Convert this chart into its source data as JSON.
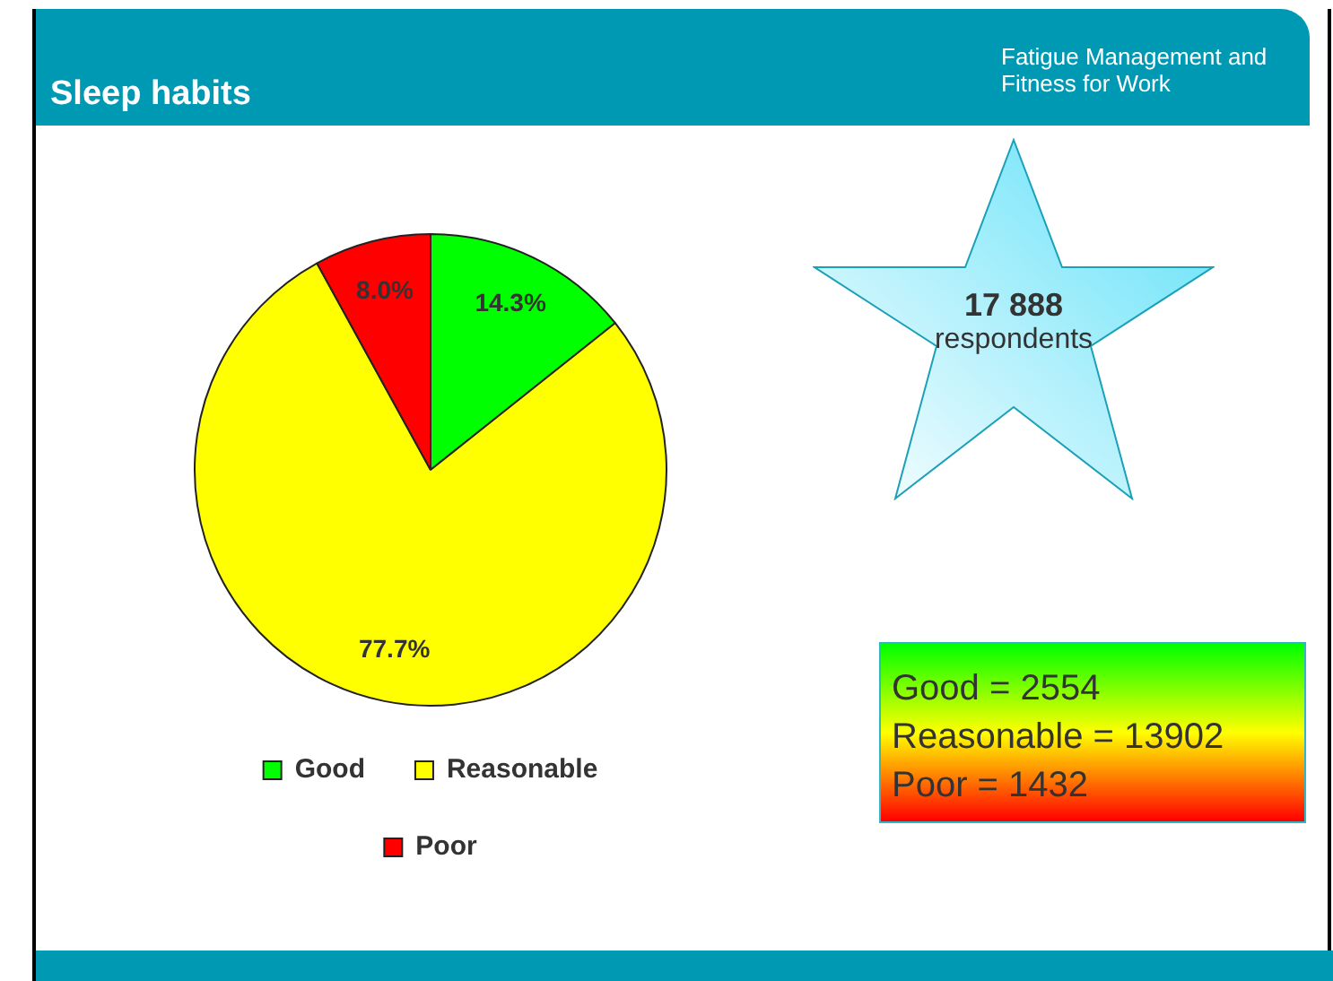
{
  "chart_data": {
    "type": "pie",
    "title": "Sleep habits",
    "categories": [
      "Good",
      "Reasonable",
      "Poor"
    ],
    "values": [
      14.3,
      77.7,
      8.0
    ],
    "value_labels": [
      "14.3%",
      "77.7%",
      "8.0%"
    ],
    "colors": [
      "#00ff00",
      "#ffff00",
      "#ff0000"
    ],
    "legend": "bottom",
    "annotations": [
      "Fatigue Management and Fitness for Work",
      "17 888",
      "respondents",
      "Good = 2554",
      "Reasonable = 13902",
      "Poor = 1432"
    ]
  }
}
